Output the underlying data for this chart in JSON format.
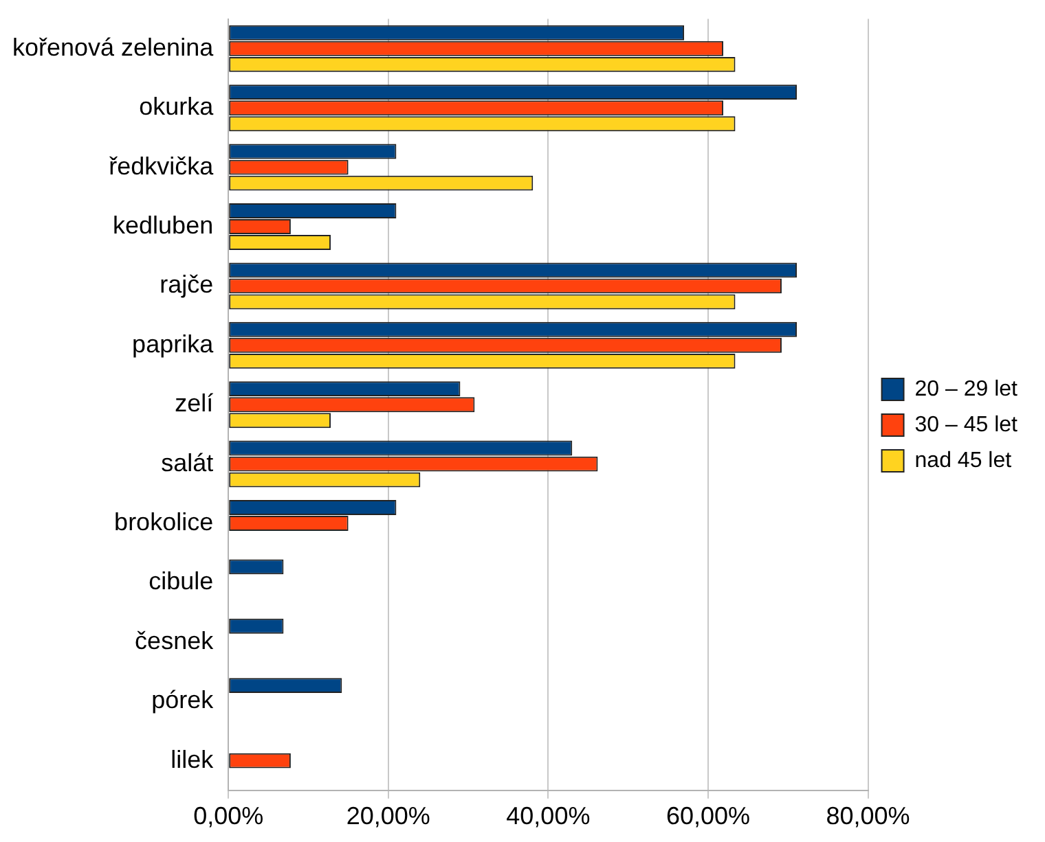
{
  "chart_data": {
    "type": "bar",
    "orientation": "horizontal",
    "categories": [
      "kořenová zelenina",
      "okurka",
      "ředkvička",
      "kedluben",
      "rajče",
      "paprika",
      "zelí",
      "salát",
      "brokolice",
      "cibule",
      "česnek",
      "pórek",
      "lilek"
    ],
    "series": [
      {
        "name": "20 – 29 let",
        "color": "#004586",
        "values": [
          57.0,
          71.1,
          21.0,
          21.0,
          71.1,
          71.1,
          29.0,
          43.0,
          21.0,
          6.9,
          6.9,
          14.2,
          null
        ]
      },
      {
        "name": "30 – 45 let",
        "color": "#ff420e",
        "values": [
          61.9,
          61.9,
          15.0,
          7.8,
          69.2,
          69.2,
          30.8,
          46.2,
          15.0,
          null,
          null,
          null,
          7.8
        ]
      },
      {
        "name": "nad 45 let",
        "color": "#ffd320",
        "values": [
          63.4,
          63.4,
          38.1,
          12.8,
          63.4,
          63.4,
          12.8,
          24.0,
          null,
          null,
          null,
          null,
          null
        ]
      }
    ],
    "xlim": [
      0,
      80
    ],
    "xticks": [
      {
        "value": 0,
        "label": "0,00%"
      },
      {
        "value": 20,
        "label": "20,00%"
      },
      {
        "value": 40,
        "label": "40,00%"
      },
      {
        "value": 60,
        "label": "60,00%"
      },
      {
        "value": 80,
        "label": "80,00%"
      }
    ],
    "grid": "x",
    "legend": "right"
  }
}
